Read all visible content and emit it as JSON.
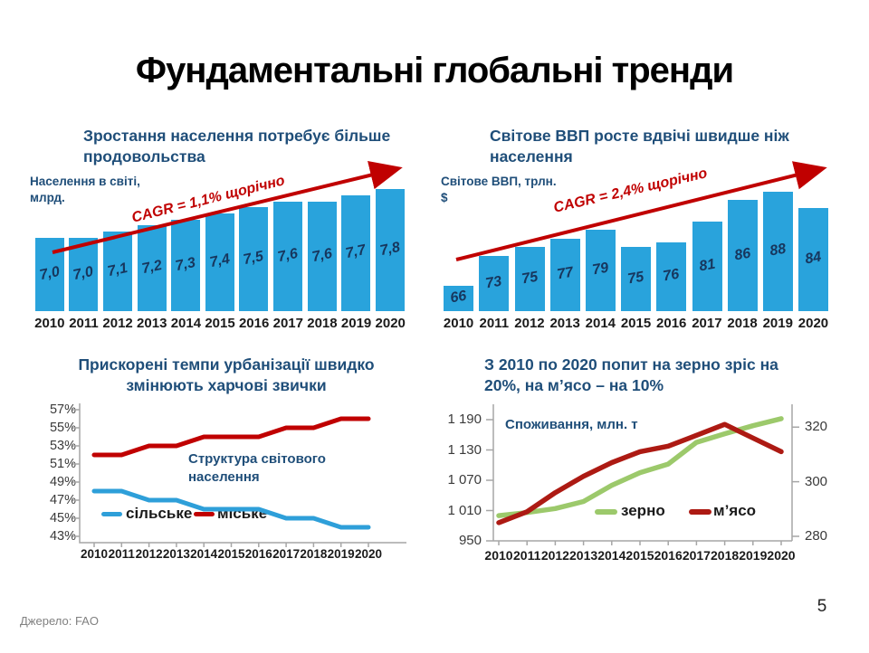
{
  "slide": {
    "title": "Фундаментальні глобальні тренди",
    "source": "Джерело: FAO",
    "page_number": "5"
  },
  "colors": {
    "bar_blue": "#29A3DC",
    "line_blue": "#2E9FD9",
    "navy": "#1F4E79",
    "value_navy": "#17365D",
    "red": "#C00000",
    "meat_red": "#AD1A13",
    "grain_green": "#9CC96B",
    "axis": "#A6A6A6",
    "tick_text": "#3A3A3A"
  },
  "chart_data": [
    {
      "id": "population",
      "type": "bar",
      "title_lines": [
        "Зростання населення потребує більше",
        "продовольства"
      ],
      "axis_label_lines": [
        "Населення в світі,",
        "млрд."
      ],
      "cagr_label": "CAGR = 1,1% щорічно",
      "categories": [
        "2010",
        "2011",
        "2012",
        "2013",
        "2014",
        "2015",
        "2016",
        "2017",
        "2018",
        "2019",
        "2020"
      ],
      "values": [
        7.0,
        7.0,
        7.1,
        7.2,
        7.3,
        7.4,
        7.5,
        7.6,
        7.6,
        7.7,
        7.8
      ],
      "value_labels": [
        "7,0",
        "7,0",
        "7,1",
        "7,2",
        "7,3",
        "7,4",
        "7,5",
        "7,6",
        "7,6",
        "7,7",
        "7,8"
      ],
      "ylim": [
        5.8,
        7.9
      ],
      "grid": false,
      "xlabel": "",
      "ylabel": "Населення в світі, млрд."
    },
    {
      "id": "gdp",
      "type": "bar",
      "title_lines": [
        "Світове ВВП росте вдвічі швидше ніж",
        "населення"
      ],
      "axis_label_lines": [
        "Світове ВВП, трлн.",
        "$"
      ],
      "cagr_label": "CAGR = 2,4% щорічно",
      "categories": [
        "2010",
        "2011",
        "2012",
        "2013",
        "2014",
        "2015",
        "2016",
        "2017",
        "2018",
        "2019",
        "2020"
      ],
      "values": [
        66,
        73,
        75,
        77,
        79,
        75,
        76,
        81,
        86,
        88,
        84
      ],
      "value_labels": [
        "66",
        "73",
        "75",
        "77",
        "79",
        "75",
        "76",
        "81",
        "86",
        "88",
        "84"
      ],
      "ylim": [
        60,
        90
      ],
      "grid": false,
      "xlabel": "",
      "ylabel": "Світове ВВП, трлн. $"
    },
    {
      "id": "urbanization",
      "type": "line",
      "title_lines": [
        "Прискорені темпи урбанізації швидко",
        "змінюють харчові звички"
      ],
      "annotation_lines": [
        "Структура світового",
        "населення"
      ],
      "categories": [
        "2010",
        "2011",
        "2012",
        "2013",
        "2014",
        "2015",
        "2016",
        "2017",
        "2018",
        "2019",
        "2020"
      ],
      "ylim": [
        43,
        57
      ],
      "yticks": [
        {
          "label": "57%",
          "value": 57
        },
        {
          "label": "55%",
          "value": 55
        },
        {
          "label": "53%",
          "value": 53
        },
        {
          "label": "51%",
          "value": 51
        },
        {
          "label": "49%",
          "value": 49
        },
        {
          "label": "47%",
          "value": 47
        },
        {
          "label": "45%",
          "value": 45
        },
        {
          "label": "43%",
          "value": 43
        }
      ],
      "grid": false,
      "legend_position": "inside-bottom",
      "series": [
        {
          "name": "сільське",
          "color_key": "line_blue",
          "values": [
            48,
            48,
            47,
            47,
            46,
            46,
            46,
            45,
            45,
            44,
            44
          ]
        },
        {
          "name": "міське",
          "color_key": "red",
          "values": [
            52,
            52,
            53,
            53,
            54,
            54,
            54,
            55,
            55,
            56,
            56
          ]
        }
      ]
    },
    {
      "id": "demand",
      "type": "line_dual",
      "title_lines": [
        "З 2010 по 2020 попит на зерно зріс на",
        "20%, на м’ясо – на 10%"
      ],
      "annotation": "Споживання, млн. т",
      "categories": [
        "2010",
        "2011",
        "2012",
        "2013",
        "2014",
        "2015",
        "2016",
        "2017",
        "2018",
        "2019",
        "2020"
      ],
      "left_ylim": [
        950,
        1190
      ],
      "left_yticks": [
        {
          "label": "1 190",
          "value": 1190
        },
        {
          "label": "1 130",
          "value": 1130
        },
        {
          "label": "1 070",
          "value": 1070
        },
        {
          "label": "1 010",
          "value": 1010
        },
        {
          "label": "950",
          "value": 950
        }
      ],
      "right_ylim": [
        280,
        320
      ],
      "right_yticks": [
        {
          "label": "320",
          "value": 320
        },
        {
          "label": "300",
          "value": 300
        },
        {
          "label": "280",
          "value": 280
        }
      ],
      "grid": false,
      "legend_position": "inside-bottom",
      "series": [
        {
          "name": "зерно",
          "axis": "left",
          "color_key": "grain_green",
          "values": [
            1000,
            1006,
            1014,
            1028,
            1060,
            1085,
            1102,
            1145,
            1162,
            1178,
            1192
          ]
        },
        {
          "name": "м’ясо",
          "axis": "right",
          "color_key": "meat_red",
          "values": [
            285,
            289,
            296,
            302,
            307,
            311,
            313,
            317,
            321,
            316,
            311
          ]
        }
      ]
    }
  ]
}
